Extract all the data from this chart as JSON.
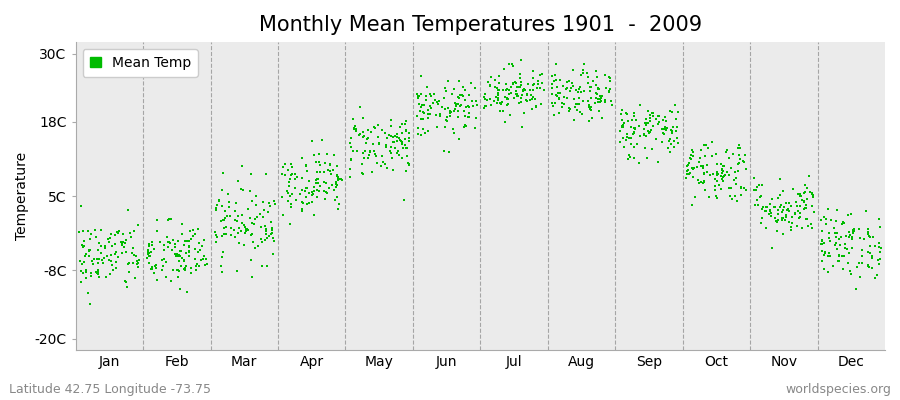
{
  "title": "Monthly Mean Temperatures 1901  -  2009",
  "ylabel": "Temperature",
  "xlabel_labels": [
    "Jan",
    "Feb",
    "Mar",
    "Apr",
    "May",
    "Jun",
    "Jul",
    "Aug",
    "Sep",
    "Oct",
    "Nov",
    "Dec"
  ],
  "ytick_labels": [
    "30C",
    "18C",
    "5C",
    "-8C",
    "-20C"
  ],
  "ytick_values": [
    30,
    18,
    5,
    -8,
    -20
  ],
  "ylim": [
    -22,
    32
  ],
  "dot_color": "#00bb00",
  "bg_color": "#ebebeb",
  "outer_bg": "#ffffff",
  "legend_label": "Mean Temp",
  "footnote_left": "Latitude 42.75 Longitude -73.75",
  "footnote_right": "worldspecies.org",
  "title_fontsize": 15,
  "label_fontsize": 10,
  "tick_fontsize": 10,
  "footnote_fontsize": 9,
  "month_means": [
    -5.5,
    -5.5,
    0.5,
    7.5,
    14.0,
    20.0,
    23.5,
    22.5,
    16.5,
    9.5,
    3.0,
    -3.5
  ],
  "month_stds": [
    3.2,
    3.0,
    3.5,
    2.8,
    2.8,
    2.5,
    2.2,
    2.2,
    2.5,
    2.8,
    2.5,
    3.0
  ],
  "n_years": 109,
  "seed": 42
}
